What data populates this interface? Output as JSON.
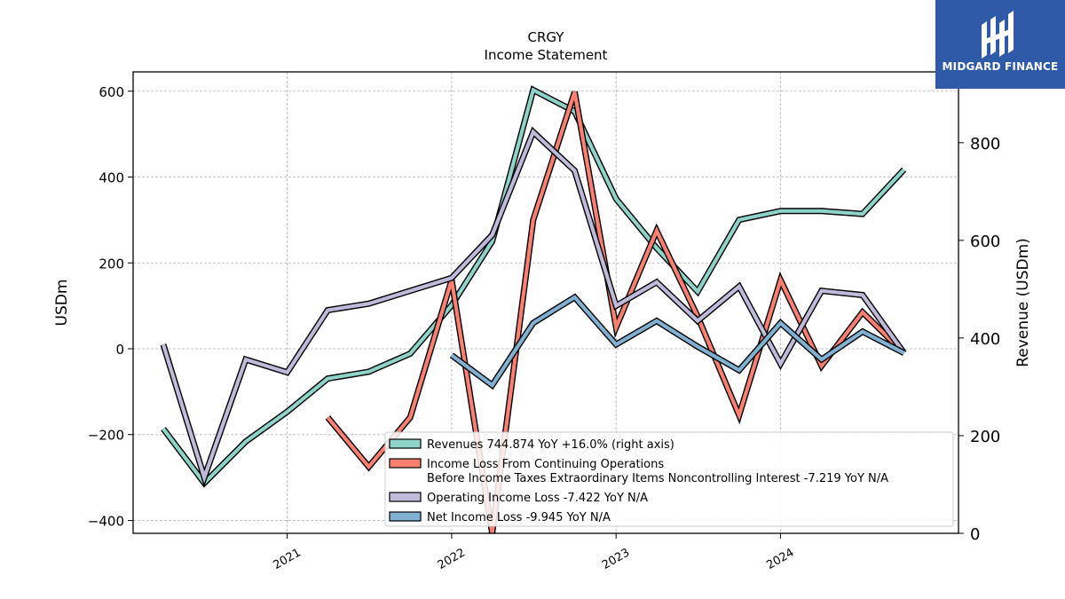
{
  "chart_data": {
    "type": "line",
    "title": "CRGY",
    "subtitle": "Income Statement",
    "ylabel": "USDm",
    "ylabel_right": "Revenue (USDm)",
    "ylim": [
      -430,
      645
    ],
    "ylim_right": [
      0,
      945
    ],
    "yticks": [
      600,
      400,
      200,
      0,
      -200,
      -400
    ],
    "ytick_labels": [
      "600",
      "400",
      "200",
      "0",
      "−200",
      "−400"
    ],
    "yticks_right": [
      800,
      600,
      400,
      200,
      0
    ],
    "ytick_labels_right": [
      "800",
      "600",
      "400",
      "200",
      "0"
    ],
    "xlim": [
      "2020-01-25",
      "2025-01-30"
    ],
    "xticks": [
      "2021-01-01",
      "2022-01-01",
      "2023-01-01",
      "2024-01-01"
    ],
    "xtick_labels": [
      "2021",
      "2022",
      "2023",
      "2024"
    ],
    "grid": true,
    "legend_position": "bottom-center",
    "series": [
      {
        "name": "Revenues  744.874 YoY +16.0% (right axis)",
        "axis": "right",
        "color": "#8dd3c7",
        "x": [
          "2020-04-01",
          "2020-07-01",
          "2020-10-01",
          "2021-01-01",
          "2021-04-01",
          "2021-07-01",
          "2021-10-01",
          "2022-01-01",
          "2022-04-01",
          "2022-07-01",
          "2022-10-01",
          "2023-01-01",
          "2023-04-01",
          "2023-07-01",
          "2023-10-01",
          "2024-01-01",
          "2024-04-01",
          "2024-07-01",
          "2024-10-01"
        ],
        "values": [
          214,
          103,
          188,
          249,
          317,
          331,
          368,
          467,
          598,
          908,
          864,
          685,
          584,
          495,
          642,
          660,
          660,
          654,
          745
        ]
      },
      {
        "name": "Income Loss From Continuing Operations\nBefore Income Taxes Extraordinary Items Noncontrolling Interest  -7.219 YoY N/A",
        "axis": "left",
        "color": "#fb8072",
        "x": [
          "2021-04-01",
          "2021-07-01",
          "2021-10-01",
          "2022-01-01",
          "2022-04-01",
          "2022-07-01",
          "2022-10-01",
          "2023-01-01",
          "2023-04-01",
          "2023-07-01",
          "2023-10-01",
          "2024-01-01",
          "2024-04-01",
          "2024-07-01",
          "2024-10-01"
        ],
        "values": [
          -160,
          -275,
          -160,
          160,
          -430,
          300,
          598,
          50,
          275,
          75,
          -155,
          160,
          -40,
          85,
          -10
        ]
      },
      {
        "name": "Operating Income Loss  -7.422 YoY N/A",
        "axis": "left",
        "color": "#bebada",
        "x": [
          "2020-04-01",
          "2020-07-01",
          "2020-10-01",
          "2021-01-01",
          "2021-04-01",
          "2021-07-01",
          "2021-10-01",
          "2022-01-01",
          "2022-04-01",
          "2022-07-01",
          "2022-10-01",
          "2023-01-01",
          "2023-04-01",
          "2023-07-01",
          "2023-10-01",
          "2024-01-01",
          "2024-04-01",
          "2024-07-01",
          "2024-10-01"
        ],
        "values": [
          10,
          -300,
          -25,
          -55,
          90,
          105,
          135,
          165,
          265,
          505,
          415,
          100,
          155,
          65,
          145,
          -35,
          135,
          125,
          -10
        ]
      },
      {
        "name": "Net Income Loss  -9.945 YoY N/A",
        "axis": "left",
        "color": "#80b1d3",
        "x": [
          "2022-01-01",
          "2022-04-01",
          "2022-07-01",
          "2022-10-01",
          "2023-01-01",
          "2023-04-01",
          "2023-07-01",
          "2023-10-01",
          "2024-01-01",
          "2024-04-01",
          "2024-07-01",
          "2024-10-01"
        ],
        "values": [
          -15,
          -85,
          60,
          120,
          10,
          65,
          5,
          -50,
          60,
          -25,
          40,
          -10
        ]
      }
    ]
  },
  "branding": {
    "name": "MIDGARD FINANCE",
    "color": "#2f5aa8"
  }
}
